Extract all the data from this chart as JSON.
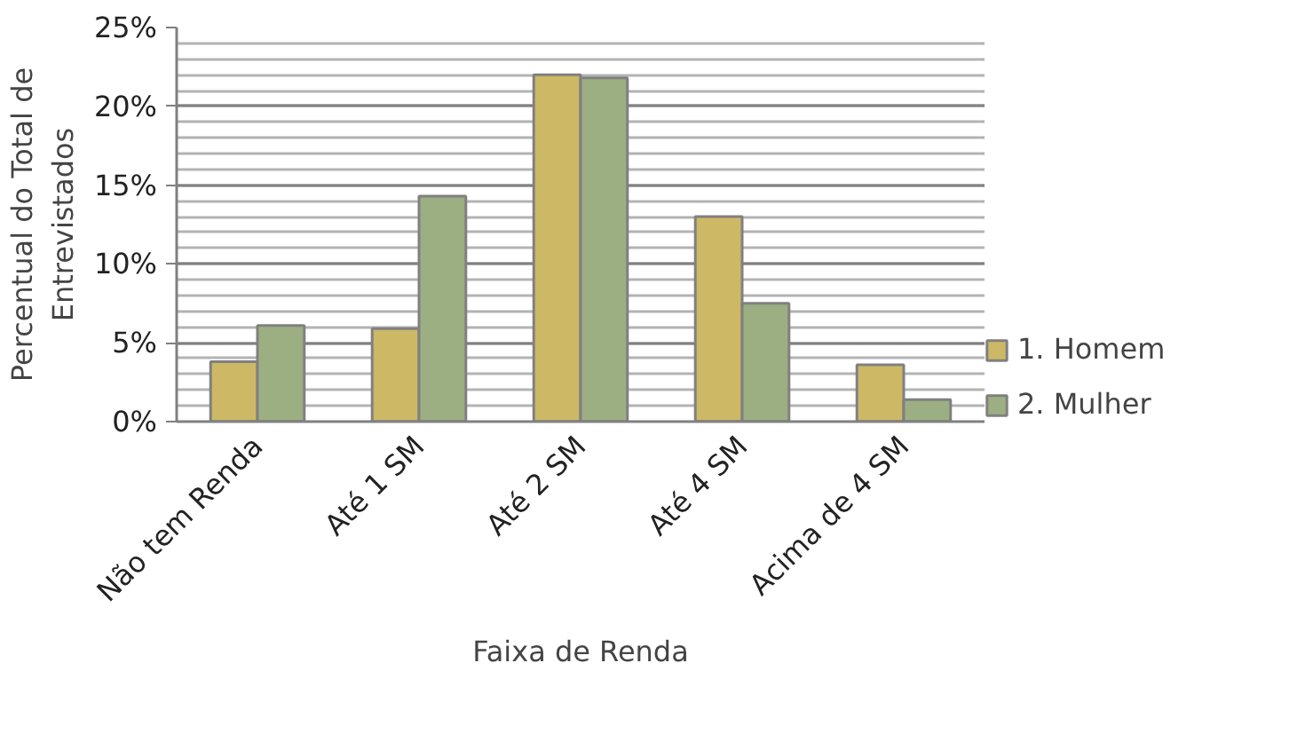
{
  "chart_data": {
    "type": "bar",
    "xlabel": "Faixa de Renda",
    "ylabel": "Percentual do Total de\nEntrevistados",
    "categories": [
      "Não tem Renda",
      "Até 1 SM",
      "Até 2 SM",
      "Até 4 SM",
      "Acima de 4 SM"
    ],
    "series": [
      {
        "name": "1. Homem",
        "color": "#cdb866",
        "values": [
          3.8,
          5.9,
          22.0,
          13.0,
          3.6
        ]
      },
      {
        "name": "2. Mulher",
        "color": "#9caf82",
        "values": [
          6.1,
          14.3,
          21.8,
          7.5,
          1.4
        ]
      }
    ],
    "ylim": [
      0,
      25
    ],
    "yticks": [
      {
        "value": 0,
        "label": "0%"
      },
      {
        "value": 5,
        "label": "5%"
      },
      {
        "value": 10,
        "label": "10%"
      },
      {
        "value": 15,
        "label": "15%"
      },
      {
        "value": 20,
        "label": "20%"
      },
      {
        "value": 25,
        "label": "25%"
      }
    ],
    "grid": "y",
    "legend": "right"
  }
}
